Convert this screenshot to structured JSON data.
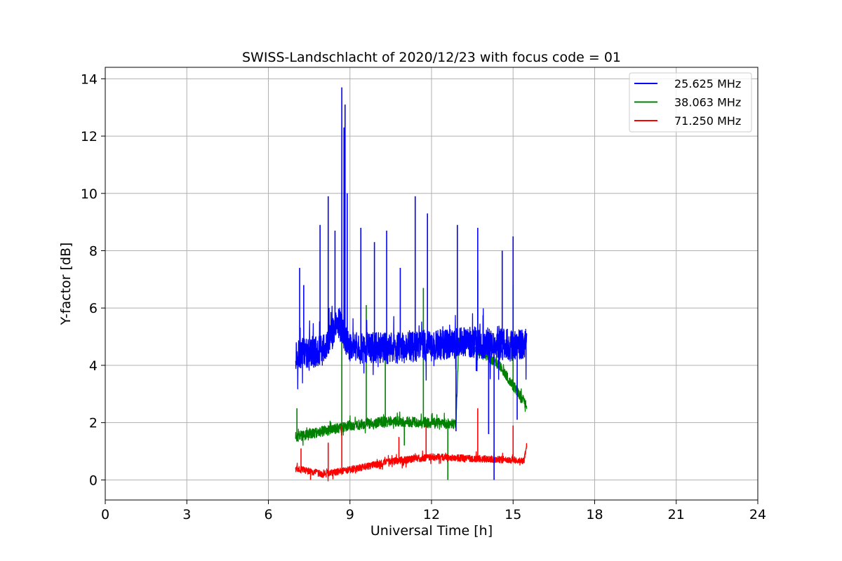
{
  "chart_data": {
    "type": "line",
    "title": "SWISS-Landschlacht of 2020/12/23 with focus code = 01",
    "xlabel": "Universal Time [h]",
    "ylabel": "Y-factor [dB]",
    "xlim": [
      0,
      24
    ],
    "ylim": [
      -0.7,
      14.4
    ],
    "xticks": [
      "0",
      "3",
      "6",
      "9",
      "12",
      "15",
      "18",
      "21",
      "24"
    ],
    "yticks": [
      "0",
      "2",
      "4",
      "6",
      "8",
      "10",
      "12",
      "14"
    ],
    "grid": true,
    "legend_position": "top-right",
    "colors": {
      "blue": "#0000ff",
      "green": "#008000",
      "red": "#ff0000"
    },
    "series": [
      {
        "name": "25.625 MHz",
        "color": "#0000ff",
        "baseline": [
          [
            7.0,
            4.4
          ],
          [
            8.0,
            4.5
          ],
          [
            8.6,
            5.5
          ],
          [
            9.0,
            4.6
          ],
          [
            10.5,
            4.6
          ],
          [
            12.0,
            4.7
          ],
          [
            13.5,
            4.8
          ],
          [
            15.0,
            4.7
          ],
          [
            15.5,
            4.8
          ]
        ],
        "noise": 0.55,
        "spikes": [
          [
            7.15,
            7.4
          ],
          [
            7.3,
            6.8
          ],
          [
            7.9,
            8.9
          ],
          [
            8.2,
            9.9
          ],
          [
            8.45,
            8.7
          ],
          [
            8.7,
            13.7
          ],
          [
            8.78,
            12.3
          ],
          [
            8.82,
            13.1
          ],
          [
            8.9,
            10.0
          ],
          [
            9.4,
            8.8
          ],
          [
            9.9,
            8.3
          ],
          [
            10.35,
            8.7
          ],
          [
            10.85,
            7.4
          ],
          [
            11.4,
            9.9
          ],
          [
            11.85,
            9.3
          ],
          [
            12.95,
            8.9
          ],
          [
            13.7,
            8.8
          ],
          [
            14.6,
            8.0
          ],
          [
            15.0,
            8.5
          ]
        ],
        "dips": [
          [
            14.3,
            0.0
          ],
          [
            14.1,
            1.6
          ],
          [
            12.9,
            1.7
          ],
          [
            15.15,
            2.1
          ]
        ]
      },
      {
        "name": "38.063 MHz",
        "color": "#008000",
        "baseline": [
          [
            7.0,
            1.5
          ],
          [
            8.0,
            1.7
          ],
          [
            9.0,
            1.9
          ],
          [
            10.5,
            2.05
          ],
          [
            12.0,
            2.0
          ],
          [
            12.9,
            1.95
          ],
          [
            13.0,
            4.8
          ],
          [
            13.8,
            4.5
          ],
          [
            14.5,
            4.0
          ],
          [
            15.0,
            3.3
          ],
          [
            15.5,
            2.6
          ]
        ],
        "noise": 0.18,
        "spikes": [
          [
            7.05,
            2.5
          ],
          [
            8.7,
            5.7
          ],
          [
            9.6,
            6.1
          ],
          [
            10.3,
            5.1
          ],
          [
            11.7,
            6.7
          ],
          [
            13.7,
            7.3
          ],
          [
            15.0,
            6.8
          ]
        ],
        "dips": [
          [
            12.6,
            0.0
          ],
          [
            11.0,
            1.2
          ]
        ]
      },
      {
        "name": "71.250 MHz",
        "color": "#ff0000",
        "baseline": [
          [
            7.0,
            0.4
          ],
          [
            7.5,
            0.3
          ],
          [
            8.0,
            0.2
          ],
          [
            9.0,
            0.35
          ],
          [
            10.5,
            0.65
          ],
          [
            12.0,
            0.8
          ],
          [
            13.5,
            0.75
          ],
          [
            15.0,
            0.7
          ],
          [
            15.4,
            0.65
          ],
          [
            15.5,
            1.2
          ]
        ],
        "noise": 0.12,
        "spikes": [
          [
            7.2,
            1.1
          ],
          [
            8.2,
            1.3
          ],
          [
            8.7,
            1.9
          ],
          [
            10.8,
            1.5
          ],
          [
            11.8,
            1.9
          ],
          [
            13.7,
            2.5
          ],
          [
            15.0,
            1.9
          ]
        ],
        "dips": [
          [
            7.55,
            0.0
          ]
        ]
      }
    ]
  }
}
